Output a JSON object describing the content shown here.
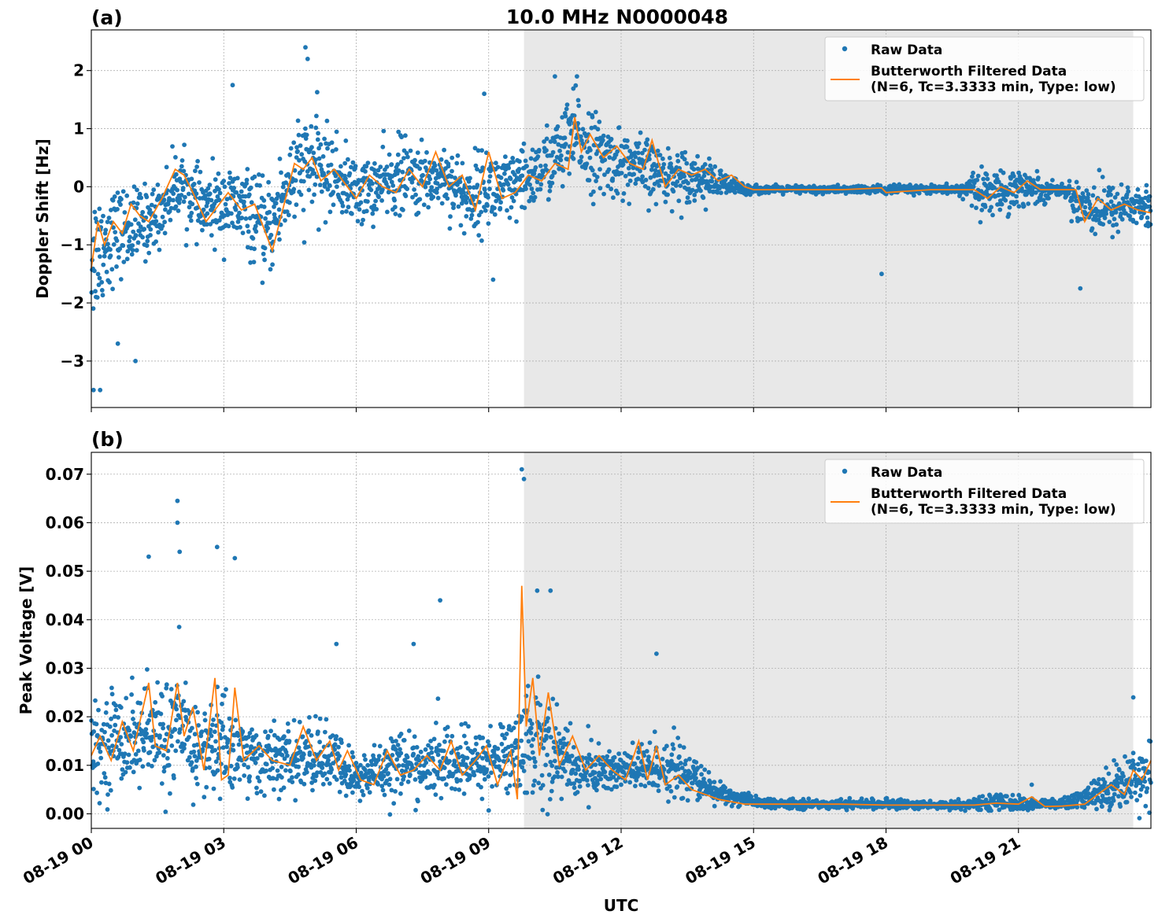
{
  "chart_data": {
    "title": "10.0 MHz N0000048",
    "xlabel": "UTC",
    "x_ticks": [
      "08-19 00",
      "08-19 03",
      "08-19 06",
      "08-19 09",
      "08-19 12",
      "08-19 15",
      "08-19 18",
      "08-19 21"
    ],
    "x_tick_hours": [
      0,
      3,
      6,
      9,
      12,
      15,
      18,
      21
    ],
    "xlim_hours": [
      0,
      24
    ],
    "night_shade_hours": [
      9.8,
      23.6
    ],
    "grid": true,
    "legend_position": "top-right",
    "colors": {
      "raw": "#1f77b4",
      "filtered": "#ff7f0e",
      "shade": "#e8e8e8"
    },
    "panels": [
      {
        "label": "(a)",
        "type": "scatter+line",
        "ylabel": "Doppler Shift [Hz]",
        "ylim": [
          -3.8,
          2.7
        ],
        "y_ticks": [
          2,
          1,
          0,
          -1,
          -2,
          -3
        ],
        "y_tick_labels": [
          "2",
          "1",
          "0",
          "−1",
          "−2",
          "−3"
        ],
        "series": [
          {
            "name": "Raw Data",
            "kind": "scatter",
            "x_hours": [
              0,
              0.5,
              1,
              1.5,
              2,
              2.5,
              3,
              3.5,
              4,
              4.5,
              5,
              5.5,
              6,
              6.5,
              7,
              7.5,
              8,
              8.5,
              9,
              9.5,
              10,
              10.5,
              11,
              11.5,
              12,
              12.5,
              13,
              13.5,
              14,
              14.5,
              15,
              15.5,
              16,
              16.5,
              17,
              17.5,
              18,
              18.5,
              19,
              19.5,
              20,
              20.5,
              21,
              21.5,
              22,
              22.5,
              23,
              23.5,
              24
            ],
            "y_center": [
              -1.2,
              -0.8,
              -0.7,
              -0.5,
              0.1,
              -0.4,
              -0.3,
              -0.4,
              -0.8,
              0.1,
              0.4,
              0.2,
              -0.1,
              0.0,
              0.2,
              0.1,
              0.2,
              -0.2,
              0.0,
              -0.1,
              0.2,
              0.5,
              0.9,
              0.5,
              0.4,
              0.3,
              0.2,
              0.2,
              0.1,
              0.0,
              -0.05,
              -0.05,
              -0.05,
              -0.05,
              -0.05,
              -0.05,
              -0.05,
              -0.05,
              -0.05,
              -0.05,
              -0.05,
              -0.1,
              0.0,
              -0.05,
              -0.05,
              -0.3,
              -0.4,
              -0.3,
              -0.4
            ],
            "y_spread": [
              1.1,
              0.7,
              0.6,
              0.5,
              0.5,
              0.5,
              0.6,
              0.6,
              0.7,
              0.8,
              0.8,
              0.6,
              0.5,
              0.5,
              0.6,
              0.5,
              0.5,
              0.6,
              0.6,
              0.6,
              0.5,
              0.6,
              0.7,
              0.6,
              0.5,
              0.5,
              0.4,
              0.4,
              0.3,
              0.15,
              0.06,
              0.06,
              0.06,
              0.06,
              0.06,
              0.06,
              0.08,
              0.06,
              0.06,
              0.06,
              0.3,
              0.3,
              0.35,
              0.2,
              0.06,
              0.5,
              0.4,
              0.35,
              0.35
            ],
            "outliers": [
              [
                0.05,
                -3.5
              ],
              [
                0.2,
                -3.5
              ],
              [
                1.0,
                -3.0
              ],
              [
                0.6,
                -2.7
              ],
              [
                4.85,
                2.4
              ],
              [
                4.9,
                2.2
              ],
              [
                3.2,
                1.75
              ],
              [
                9.1,
                -1.6
              ],
              [
                17.9,
                -1.5
              ],
              [
                22.4,
                -1.75
              ],
              [
                10.5,
                1.9
              ],
              [
                8.9,
                1.6
              ],
              [
                11.0,
                1.9
              ]
            ]
          },
          {
            "name": "Butterworth Filtered Data\n(N=6, Tc=3.3333 min, Type: low)",
            "kind": "line",
            "x_hours": [
              0,
              0.15,
              0.3,
              0.5,
              0.7,
              0.9,
              1.1,
              1.3,
              1.6,
              1.9,
              2.1,
              2.3,
              2.6,
              2.9,
              3.1,
              3.4,
              3.7,
              3.9,
              4.1,
              4.3,
              4.6,
              4.8,
              5.0,
              5.2,
              5.5,
              5.8,
              6.0,
              6.3,
              6.6,
              6.9,
              7.2,
              7.5,
              7.8,
              8.1,
              8.4,
              8.7,
              9.0,
              9.3,
              9.6,
              9.9,
              10.2,
              10.5,
              10.8,
              10.95,
              11.1,
              11.3,
              11.6,
              11.9,
              12.2,
              12.5,
              12.7,
              13.0,
              13.3,
              13.6,
              13.9,
              14.2,
              14.5,
              14.8,
              15.0,
              16.0,
              17.0,
              17.9,
              18.0,
              19.0,
              20.0,
              20.3,
              20.6,
              20.9,
              21.2,
              21.5,
              22.0,
              22.3,
              22.5,
              22.8,
              23.1,
              23.4,
              23.7,
              24.0
            ],
            "y": [
              -1.4,
              -0.6,
              -1.0,
              -0.6,
              -0.8,
              -0.3,
              -0.5,
              -0.6,
              -0.2,
              0.3,
              0.2,
              -0.1,
              -0.6,
              -0.3,
              -0.1,
              -0.4,
              -0.3,
              -0.7,
              -1.1,
              -0.5,
              0.4,
              0.3,
              0.5,
              0.1,
              0.3,
              0.0,
              -0.2,
              0.2,
              0.0,
              -0.1,
              0.3,
              0.0,
              0.6,
              0.0,
              0.2,
              -0.4,
              0.6,
              -0.2,
              -0.1,
              0.2,
              0.1,
              0.4,
              0.3,
              1.2,
              0.6,
              0.9,
              0.5,
              0.7,
              0.4,
              0.3,
              0.8,
              0.0,
              0.3,
              0.2,
              0.3,
              0.1,
              0.2,
              0.0,
              -0.05,
              -0.05,
              -0.05,
              -0.02,
              -0.1,
              -0.05,
              -0.05,
              -0.2,
              0.0,
              -0.1,
              0.1,
              -0.05,
              -0.05,
              -0.05,
              -0.6,
              -0.2,
              -0.4,
              -0.3,
              -0.4,
              -0.45
            ]
          }
        ]
      },
      {
        "label": "(b)",
        "type": "scatter+line",
        "ylabel": "Peak Voltage [V]",
        "ylim": [
          -0.003,
          0.0745
        ],
        "y_ticks": [
          0.0,
          0.01,
          0.02,
          0.03,
          0.04,
          0.05,
          0.06,
          0.07
        ],
        "y_tick_labels": [
          "0.00",
          "0.01",
          "0.02",
          "0.03",
          "0.04",
          "0.05",
          "0.06",
          "0.07"
        ],
        "series": [
          {
            "name": "Raw Data",
            "kind": "scatter",
            "x_hours": [
              0,
              0.5,
              1,
              1.5,
              2,
              2.5,
              3,
              3.5,
              4,
              4.5,
              5,
              5.5,
              6,
              6.5,
              7,
              7.5,
              8,
              8.5,
              9,
              9.5,
              10,
              10.5,
              11,
              11.5,
              12,
              12.5,
              13,
              13.5,
              14,
              14.5,
              15,
              15.5,
              16,
              16.5,
              17,
              17.5,
              18,
              18.5,
              19,
              19.5,
              20,
              20.5,
              21,
              21.5,
              22,
              22.5,
              23,
              23.5,
              24
            ],
            "y_center": [
              0.012,
              0.016,
              0.016,
              0.016,
              0.017,
              0.013,
              0.015,
              0.012,
              0.011,
              0.011,
              0.012,
              0.011,
              0.007,
              0.009,
              0.011,
              0.009,
              0.011,
              0.01,
              0.011,
              0.012,
              0.016,
              0.013,
              0.009,
              0.009,
              0.009,
              0.009,
              0.01,
              0.008,
              0.005,
              0.0035,
              0.0025,
              0.002,
              0.002,
              0.002,
              0.002,
              0.002,
              0.002,
              0.002,
              0.0018,
              0.0018,
              0.002,
              0.0025,
              0.002,
              0.002,
              0.002,
              0.003,
              0.005,
              0.007,
              0.009
            ],
            "y_spread": [
              0.007,
              0.009,
              0.009,
              0.01,
              0.011,
              0.008,
              0.01,
              0.007,
              0.006,
              0.006,
              0.007,
              0.006,
              0.004,
              0.006,
              0.006,
              0.005,
              0.007,
              0.006,
              0.006,
              0.007,
              0.012,
              0.009,
              0.005,
              0.005,
              0.004,
              0.005,
              0.006,
              0.004,
              0.003,
              0.0015,
              0.001,
              0.0008,
              0.0008,
              0.0008,
              0.0008,
              0.0008,
              0.0008,
              0.0008,
              0.0008,
              0.0008,
              0.001,
              0.0015,
              0.0012,
              0.001,
              0.001,
              0.002,
              0.004,
              0.005,
              0.006
            ],
            "outliers": [
              [
                1.95,
                0.0645
              ],
              [
                1.95,
                0.06
              ],
              [
                2.0,
                0.054
              ],
              [
                1.3,
                0.053
              ],
              [
                2.85,
                0.055
              ],
              [
                3.25,
                0.0527
              ],
              [
                9.75,
                0.071
              ],
              [
                9.8,
                0.069
              ],
              [
                10.1,
                0.046
              ],
              [
                10.4,
                0.046
              ],
              [
                7.9,
                0.044
              ],
              [
                12.8,
                0.033
              ],
              [
                5.55,
                0.035
              ],
              [
                7.3,
                0.035
              ],
              [
                23.6,
                0.024
              ],
              [
                21.3,
                0.006
              ]
            ]
          },
          {
            "name": "Butterworth Filtered Data\n(N=6, Tc=3.3333 min, Type: low)",
            "kind": "line",
            "x_hours": [
              0,
              0.2,
              0.45,
              0.7,
              0.95,
              1.15,
              1.3,
              1.45,
              1.7,
              1.95,
              2.1,
              2.3,
              2.55,
              2.8,
              2.95,
              3.1,
              3.25,
              3.45,
              3.8,
              4.1,
              4.5,
              4.8,
              5.1,
              5.4,
              5.6,
              5.8,
              6.1,
              6.4,
              6.7,
              7.0,
              7.3,
              7.6,
              7.9,
              8.15,
              8.4,
              8.7,
              8.95,
              9.2,
              9.5,
              9.65,
              9.75,
              9.85,
              10.0,
              10.15,
              10.35,
              10.6,
              10.9,
              11.2,
              11.5,
              11.8,
              12.1,
              12.4,
              12.6,
              12.8,
              13.0,
              13.3,
              13.6,
              13.9,
              14.2,
              14.5,
              14.8,
              15.2,
              16.0,
              17.0,
              18.0,
              19.0,
              20.0,
              20.5,
              21.0,
              21.3,
              21.6,
              22.0,
              22.5,
              22.8,
              23.1,
              23.4,
              23.6,
              23.8,
              24.0
            ],
            "y": [
              0.012,
              0.016,
              0.011,
              0.019,
              0.013,
              0.021,
              0.027,
              0.014,
              0.013,
              0.027,
              0.016,
              0.022,
              0.009,
              0.028,
              0.007,
              0.008,
              0.026,
              0.011,
              0.014,
              0.011,
              0.01,
              0.018,
              0.011,
              0.015,
              0.009,
              0.013,
              0.007,
              0.006,
              0.013,
              0.008,
              0.009,
              0.012,
              0.009,
              0.015,
              0.008,
              0.011,
              0.014,
              0.006,
              0.013,
              0.003,
              0.047,
              0.018,
              0.028,
              0.012,
              0.025,
              0.01,
              0.016,
              0.009,
              0.012,
              0.009,
              0.007,
              0.015,
              0.007,
              0.014,
              0.006,
              0.008,
              0.005,
              0.004,
              0.003,
              0.0025,
              0.002,
              0.002,
              0.002,
              0.002,
              0.0018,
              0.0018,
              0.0018,
              0.0022,
              0.002,
              0.0035,
              0.0015,
              0.0016,
              0.002,
              0.004,
              0.006,
              0.004,
              0.009,
              0.007,
              0.011
            ]
          }
        ]
      }
    ]
  }
}
